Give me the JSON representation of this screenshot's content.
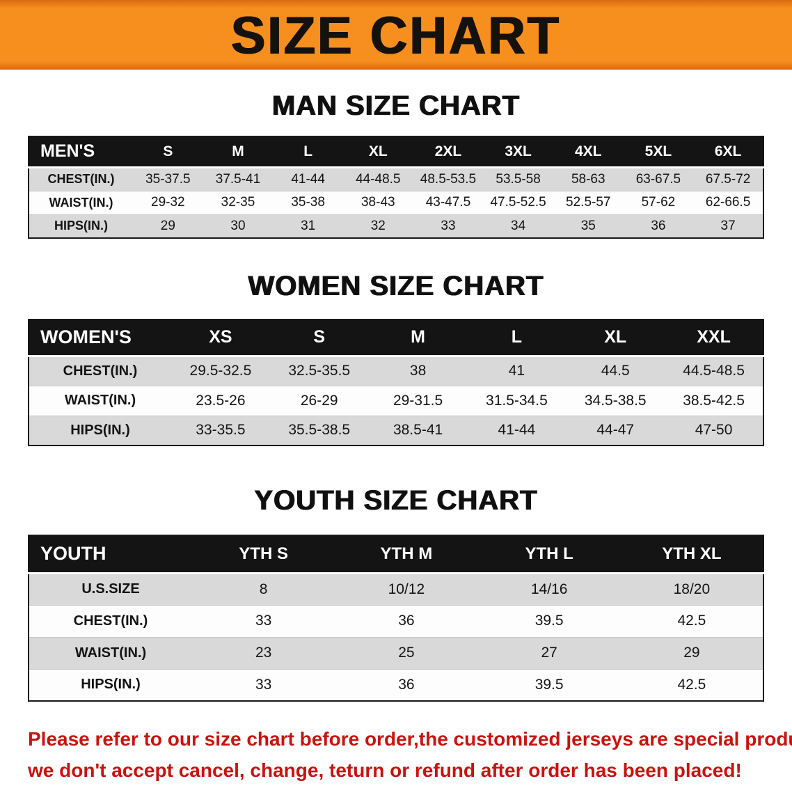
{
  "banner": {
    "title": "SIZE CHART"
  },
  "colors": {
    "banner_orange": "#f78f1e",
    "header_black": "#141414",
    "row_gray": "#d9d9d9",
    "note_red": "#c9130d"
  },
  "sections": [
    {
      "heading": "MAN SIZE CHART",
      "table": {
        "header": [
          "MEN'S",
          "S",
          "M",
          "L",
          "XL",
          "2XL",
          "3XL",
          "4XL",
          "5XL",
          "6XL"
        ],
        "rows": [
          [
            "CHEST(IN.)",
            "35-37.5",
            "37.5-41",
            "41-44",
            "44-48.5",
            "48.5-53.5",
            "53.5-58",
            "58-63",
            "63-67.5",
            "67.5-72"
          ],
          [
            "WAIST(IN.)",
            "29-32",
            "32-35",
            "35-38",
            "38-43",
            "43-47.5",
            "47.5-52.5",
            "52.5-57",
            "57-62",
            "62-66.5"
          ],
          [
            "HIPS(IN.)",
            "29",
            "30",
            "31",
            "32",
            "33",
            "34",
            "35",
            "36",
            "37"
          ]
        ]
      }
    },
    {
      "heading": "WOMEN SIZE CHART",
      "table": {
        "header": [
          "WOMEN'S",
          "XS",
          "S",
          "M",
          "L",
          "XL",
          "XXL"
        ],
        "rows": [
          [
            "CHEST(IN.)",
            "29.5-32.5",
            "32.5-35.5",
            "38",
            "41",
            "44.5",
            "44.5-48.5"
          ],
          [
            "WAIST(IN.)",
            "23.5-26",
            "26-29",
            "29-31.5",
            "31.5-34.5",
            "34.5-38.5",
            "38.5-42.5"
          ],
          [
            "HIPS(IN.)",
            "33-35.5",
            "35.5-38.5",
            "38.5-41",
            "41-44",
            "44-47",
            "47-50"
          ]
        ]
      }
    },
    {
      "heading": "YOUTH SIZE CHART",
      "table": {
        "header": [
          "YOUTH",
          "YTH S",
          "YTH M",
          "YTH L",
          "YTH XL"
        ],
        "rows": [
          [
            "U.S.SIZE",
            "8",
            "10/12",
            "14/16",
            "18/20"
          ],
          [
            "CHEST(IN.)",
            "33",
            "36",
            "39.5",
            "42.5"
          ],
          [
            "WAIST(IN.)",
            "23",
            "25",
            "27",
            "29"
          ],
          [
            "HIPS(IN.)",
            "33",
            "36",
            "39.5",
            "42.5"
          ]
        ]
      }
    }
  ],
  "footer_note": {
    "line1": "Please refer to our size chart before order,the customized jerseys are special products,",
    "line2": "we don't accept cancel, change, teturn or refund after order has been placed!"
  }
}
